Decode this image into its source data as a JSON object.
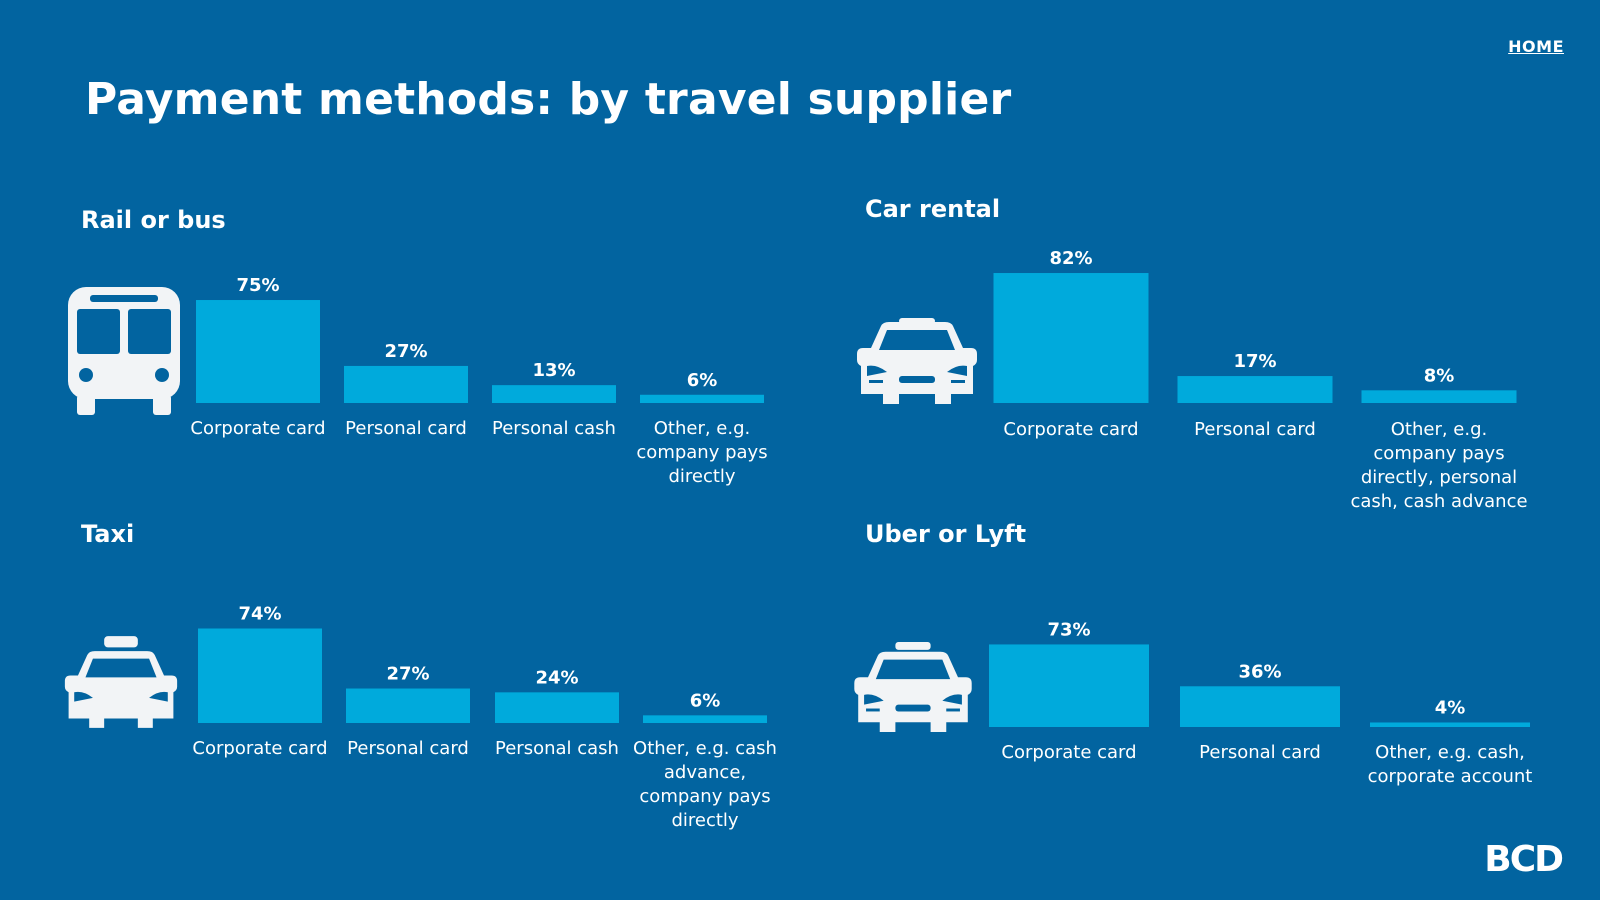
{
  "header": {
    "title": "Payment methods: by travel supplier",
    "home_label": "HOME"
  },
  "logo": {
    "text": "BCD"
  },
  "colors": {
    "background": "#0264a0",
    "bar": "#00aadc",
    "text": "#ffffff"
  },
  "icons": [
    "bus-icon",
    "car-icon",
    "taxi-icon",
    "ride-share-car-icon"
  ],
  "chart_data": [
    {
      "type": "bar",
      "title": "Rail or bus",
      "categories": [
        "Corporate card",
        "Personal card",
        "Personal cash",
        "Other, e.g. company pays directly"
      ],
      "values": [
        75,
        27,
        13,
        6
      ],
      "value_labels": [
        "75%",
        "27%",
        "13%",
        "6%"
      ],
      "category_lines": [
        [
          "Corporate card"
        ],
        [
          "Personal card"
        ],
        [
          "Personal cash"
        ],
        [
          "Other, e.g.",
          "company pays",
          "directly"
        ]
      ],
      "ylim": [
        0,
        100
      ],
      "grid": false
    },
    {
      "type": "bar",
      "title": "Car rental",
      "categories": [
        "Corporate card",
        "Personal card",
        "Other, e.g. company pays directly, personal cash, cash advance"
      ],
      "values": [
        82,
        17,
        8
      ],
      "value_labels": [
        "82%",
        "17%",
        "8%"
      ],
      "category_lines": [
        [
          "Corporate card"
        ],
        [
          "Personal card"
        ],
        [
          "Other, e.g.",
          "company pays",
          "directly, personal",
          "cash, cash advance"
        ]
      ],
      "ylim": [
        0,
        100
      ],
      "grid": false
    },
    {
      "type": "bar",
      "title": "Taxi",
      "categories": [
        "Corporate card",
        "Personal card",
        "Personal cash",
        "Other, e.g. cash advance, company pays directly"
      ],
      "values": [
        74,
        27,
        24,
        6
      ],
      "value_labels": [
        "74%",
        "27%",
        "24%",
        "6%"
      ],
      "category_lines": [
        [
          "Corporate card"
        ],
        [
          "Personal card"
        ],
        [
          "Personal cash"
        ],
        [
          "Other, e.g. cash",
          "advance,",
          "company pays",
          "directly"
        ]
      ],
      "ylim": [
        0,
        100
      ],
      "grid": false
    },
    {
      "type": "bar",
      "title": "Uber or Lyft",
      "categories": [
        "Corporate card",
        "Personal card",
        "Other, e.g. cash, corporate account"
      ],
      "values": [
        73,
        36,
        4
      ],
      "value_labels": [
        "73%",
        "36%",
        "4%"
      ],
      "category_lines": [
        [
          "Corporate card"
        ],
        [
          "Personal card"
        ],
        [
          "Other, e.g. cash,",
          "corporate account"
        ]
      ],
      "ylim": [
        0,
        100
      ],
      "grid": false
    }
  ]
}
